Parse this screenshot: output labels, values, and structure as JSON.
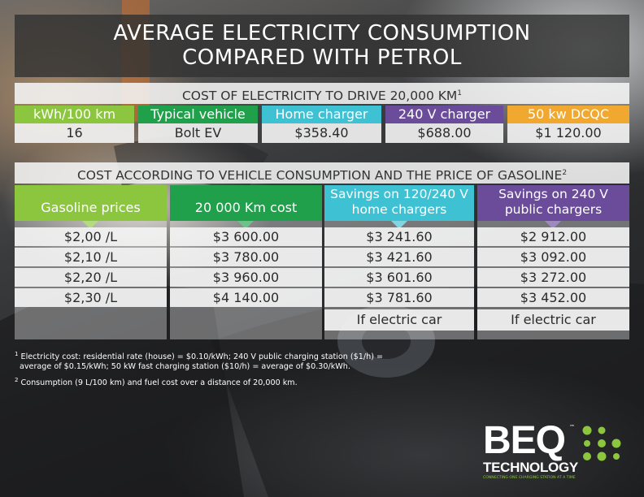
{
  "title": {
    "line1": "AVERAGE ELECTRICITY CONSUMPTION",
    "line2": "COMPARED WITH PETROL"
  },
  "section1": {
    "header": "COST OF ELECTRICITY TO DRIVE 20,000 KM",
    "header_sup": "1",
    "columns": [
      {
        "label": "kWh/100 km",
        "value": "16",
        "color": "#8cc63f"
      },
      {
        "label": "Typical vehicle",
        "value": "Bolt EV",
        "color": "#20a04b"
      },
      {
        "label": "Home charger",
        "value": "$358.40",
        "color": "#3ec1d3"
      },
      {
        "label": "240 V charger",
        "value": "$688.00",
        "color": "#6b4c9a"
      },
      {
        "label": "50 kw DCQC",
        "value": "$1 120.00",
        "color": "#f0a830"
      }
    ]
  },
  "section2": {
    "header": "COST ACCORDING TO VEHICLE CONSUMPTION AND THE PRICE OF GASOLINE",
    "header_sup": "2",
    "columns": [
      {
        "label": "Gasoline prices",
        "color": "#8cc63f",
        "values": [
          "$2,00 /L",
          "$2,10 /L",
          "$2,20 /L",
          "$2,30 /L",
          ""
        ]
      },
      {
        "label": "20 000 Km cost",
        "color": "#20a04b",
        "values": [
          "$3 600.00",
          "$3 780.00",
          "$3 960.00",
          "$4 140.00",
          ""
        ]
      },
      {
        "label_line1": "Savings on 120/240 V",
        "label_line2": "home chargers",
        "color": "#3ec1d3",
        "values": [
          "$3 241.60",
          "$3 421.60",
          "$3 601.60",
          "$3 781.60",
          "If electric car"
        ]
      },
      {
        "label_line1": "Savings on 240 V",
        "label_line2": "public chargers",
        "color": "#6b4c9a",
        "values": [
          "$2 912.00",
          "$3 092.00",
          "$3 272.00",
          "$3 452.00",
          "If electric car"
        ]
      }
    ]
  },
  "footnotes": {
    "note1_sup": "1",
    "note1_line1": " Electricity cost: residential rate (house) = $0.10/kWh; 240 V public charging station ($1/h) =",
    "note1_line2": "average of $0.15/kWh; 50 kW fast charging station ($10/h) = average of $0.30/kWh.",
    "note2_sup": "2",
    "note2": " Consumption (9 L/100 km) and fuel cost over a distance of 20,000 km."
  },
  "logo": {
    "name": "BEQ",
    "tm": "™",
    "subtitle": "TECHNOLOGY",
    "tagline": "CONNECTING ONE CHARGING STATION AT A TIME",
    "accent_color": "#8cc63f"
  }
}
